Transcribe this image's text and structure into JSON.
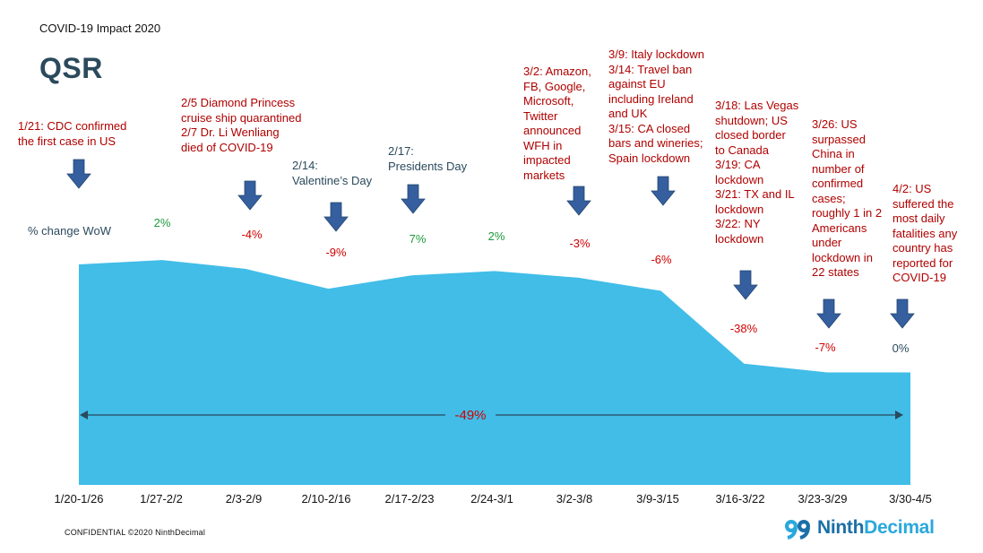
{
  "header": {
    "supertitle": "COVID-19 Impact 2020",
    "title": "QSR"
  },
  "wow_label": "% change WoW",
  "chart_data": {
    "type": "area",
    "categories": [
      "1/20-1/26",
      "1/27-2/2",
      "2/3-2/9",
      "2/10-2/16",
      "2/17-2/23",
      "2/24-3/1",
      "3/2-3/8",
      "3/9-3/15",
      "3/16-3/22",
      "3/23-3/29",
      "3/30-4/5"
    ],
    "values": [
      100,
      102,
      98,
      89,
      95,
      97,
      94,
      88,
      55,
      51,
      51
    ],
    "ylim": [
      0,
      105
    ],
    "wow_changes": [
      "",
      "2%",
      "-4%",
      "-9%",
      "7%",
      "2%",
      "-3%",
      "-6%",
      "-38%",
      "-7%",
      "0%"
    ],
    "total_change": "-49%",
    "annotations": [
      "1/21: CDC confirmed\nthe first case in US",
      "2/5 Diamond Princess\ncruise ship quarantined\n2/7 Dr. Li Wenliang\ndied of COVID-19",
      "2/14:\nValentine’s Day",
      "2/17:\nPresidents Day",
      "3/2: Amazon,\nFB, Google,\nMicrosoft,\nTwitter\nannounced\nWFH in\nimpacted\nmarkets",
      "3/9: Italy lockdown\n3/14: Travel ban\nagainst EU\nincluding Ireland\nand UK\n3/15: CA closed\nbars and wineries;\nSpain lockdown",
      "3/18: Las Vegas\nshutdown; US\nclosed border\nto Canada\n3/19: CA\nlockdown\n3/21: TX and IL\nlockdown\n3/22: NY\nlockdown",
      "3/26: US\nsurpassed\nChina in\nnumber of\nconfirmed\ncases;\nroughly 1 in 2\nAmericans\nunder\nlockdown in\n22 states",
      "4/2: US\nsuffered the\nmost daily\nfatalities any\ncountry has\nreported for\nCOVID-19"
    ],
    "grid": false,
    "legend": "none"
  },
  "colors": {
    "area": "#41bde8",
    "positive": "#1e9a3c",
    "negative": "#d00000",
    "neutral": "#2b4a5c",
    "arrow": "#355f9e",
    "annotation": "#b00000"
  },
  "footer": {
    "confidential": "CONFIDENTIAL ©2020 NinthDecimal",
    "logo_bold": "Ninth",
    "logo_light": "Decimal"
  }
}
